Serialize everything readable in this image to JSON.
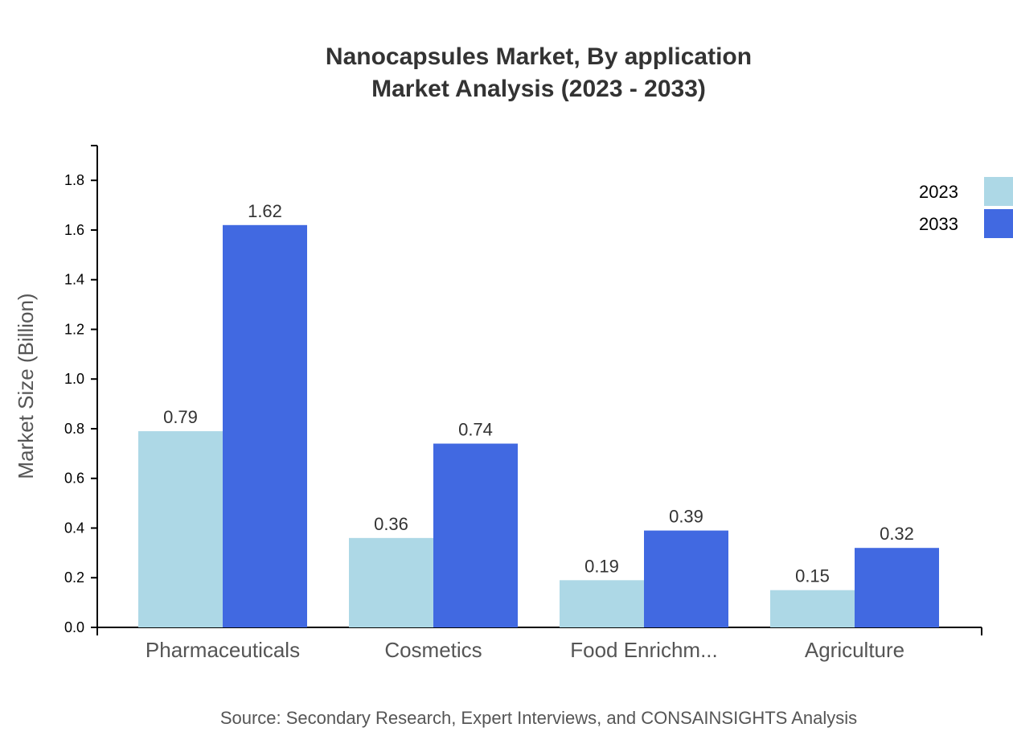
{
  "chart_data": {
    "type": "bar",
    "title": "Nanocapsules Market, By application",
    "subtitle": "Market Analysis (2023 - 2033)",
    "xlabel": "",
    "ylabel": "Market Size (Billion)",
    "ylim": [
      0,
      1.94
    ],
    "yticks": [
      "0.0",
      "0.2",
      "0.4",
      "0.6",
      "0.8",
      "1.0",
      "1.2",
      "1.4",
      "1.6",
      "1.8"
    ],
    "categories": [
      "Pharmaceuticals",
      "Cosmetics",
      "Food Enrichm...",
      "Agriculture"
    ],
    "series": [
      {
        "name": "2023",
        "color": "#ADD8E6",
        "values": [
          0.79,
          0.36,
          0.19,
          0.15
        ]
      },
      {
        "name": "2033",
        "color": "#4169E1",
        "values": [
          1.62,
          0.74,
          0.39,
          0.32
        ]
      }
    ],
    "grid": false,
    "legend": "top-right",
    "source": "Source: Secondary Research, Expert Interviews, and CONSAINSIGHTS Analysis"
  }
}
